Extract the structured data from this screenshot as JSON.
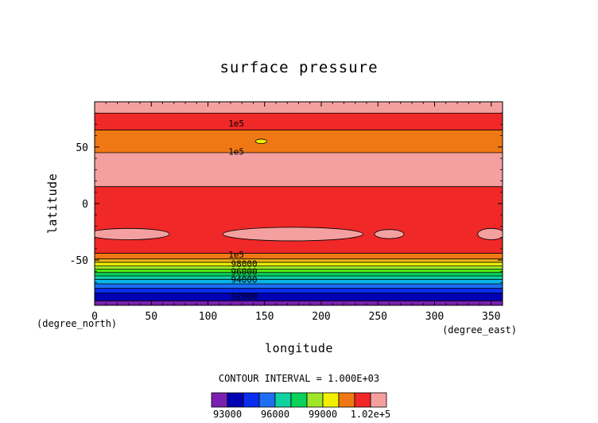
{
  "chart_data": {
    "type": "heatmap",
    "title": "surface pressure",
    "xlabel": "longitude",
    "ylabel": "latitude",
    "x_unit": "(degree_east)",
    "y_unit": "(degree_north)",
    "xlim": [
      0,
      360
    ],
    "ylim": [
      -90,
      90
    ],
    "x_ticks": [
      "0",
      "50",
      "100",
      "150",
      "200",
      "250",
      "300",
      "350"
    ],
    "y_ticks": [
      "-50",
      "0",
      "50"
    ],
    "contour_interval_text": "CONTOUR INTERVAL = 1.000E+03",
    "contour_interval": 1000,
    "grid": false,
    "colors": [
      "#7a1fb0",
      "#0000b4",
      "#0a2cf0",
      "#1e6ef4",
      "#0ab4e6",
      "#10d2a0",
      "#0ad25a",
      "#50e614",
      "#a0e628",
      "#f0f000",
      "#f0b414",
      "#f07814",
      "#f02828",
      "#f03232",
      "#f5a0a0"
    ],
    "colorbar": {
      "bounds": [
        92000,
        93000,
        94000,
        95000,
        96000,
        97000,
        98000,
        99000,
        100000,
        101000,
        102000,
        103000
      ],
      "colors": [
        "#7a1fb0",
        "#0000b4",
        "#0a2cf0",
        "#1e6ef4",
        "#10d2a0",
        "#0ad25a",
        "#a0e628",
        "#f0f000",
        "#f07814",
        "#f02828",
        "#f5a0a0"
      ],
      "tick_labels": [
        "93000",
        "96000",
        "99000",
        "1.02e+5"
      ]
    },
    "bands": [
      {
        "lat_from": -90,
        "lat_to": -86,
        "pressure": 92500,
        "color": "#7a1fb0"
      },
      {
        "lat_from": -86,
        "lat_to": -79,
        "pressure": 93500,
        "color": "#0000b4"
      },
      {
        "lat_from": -79,
        "lat_to": -75,
        "pressure": 94500,
        "color": "#0a2cf0"
      },
      {
        "lat_from": -75,
        "lat_to": -71,
        "pressure": 95000,
        "color": "#1e6ef4"
      },
      {
        "lat_from": -71,
        "lat_to": -67,
        "pressure": 95500,
        "color": "#0ab4e6"
      },
      {
        "lat_from": -67,
        "lat_to": -64,
        "pressure": 96500,
        "color": "#10d2a0"
      },
      {
        "lat_from": -64,
        "lat_to": -61,
        "pressure": 97000,
        "color": "#0ad25a"
      },
      {
        "lat_from": -61,
        "lat_to": -58,
        "pressure": 97500,
        "color": "#50e614"
      },
      {
        "lat_from": -58,
        "lat_to": -55,
        "pressure": 98500,
        "color": "#a0e628"
      },
      {
        "lat_from": -55,
        "lat_to": -52,
        "pressure": 99000,
        "color": "#f0f000"
      },
      {
        "lat_from": -52,
        "lat_to": -49,
        "pressure": 99500,
        "color": "#f0b414"
      },
      {
        "lat_from": -49,
        "lat_to": -44,
        "pressure": 100500,
        "color": "#f07814"
      },
      {
        "lat_from": -44,
        "lat_to": 15,
        "pressure": 101500,
        "color": "#f02828"
      },
      {
        "lat_from": 15,
        "lat_to": 45,
        "pressure": 102500,
        "color": "#f5a0a0"
      },
      {
        "lat_from": 45,
        "lat_to": 65,
        "pressure": 100500,
        "color": "#f07814"
      },
      {
        "lat_from": 65,
        "lat_to": 80,
        "pressure": 101500,
        "color": "#f02828"
      },
      {
        "lat_from": 80,
        "lat_to": 90,
        "pressure": 102500,
        "color": "#f5a0a0"
      }
    ],
    "blobs": [
      {
        "lon": 30,
        "lat": -27,
        "lon_radius": 36,
        "lat_radius": 5,
        "pressure": 102500,
        "color": "#f5a0a0"
      },
      {
        "lon": 175,
        "lat": -27,
        "lon_radius": 62,
        "lat_radius": 6,
        "pressure": 102500,
        "color": "#f5a0a0"
      },
      {
        "lon": 260,
        "lat": -27,
        "lon_radius": 13,
        "lat_radius": 4,
        "pressure": 102500,
        "color": "#f5a0a0"
      },
      {
        "lon": 350,
        "lat": -27,
        "lon_radius": 12,
        "lat_radius": 5,
        "pressure": 102500,
        "color": "#f5a0a0"
      },
      {
        "lon": 147,
        "lat": 55,
        "lon_radius": 5,
        "lat_radius": 2,
        "pressure": 99000,
        "color": "#f0f000"
      }
    ],
    "contour_labels": [
      {
        "text": "1e5",
        "lon": 125,
        "lat": 71
      },
      {
        "text": "1e5",
        "lon": 125,
        "lat": 46
      },
      {
        "text": "1e5",
        "lon": 125,
        "lat": -45
      },
      {
        "text": "98000",
        "lon": 132,
        "lat": -53
      },
      {
        "text": "96000",
        "lon": 132,
        "lat": -60
      },
      {
        "text": "94000",
        "lon": 132,
        "lat": -67
      },
      {
        "text": "92000",
        "lon": 132,
        "lat": -82
      }
    ]
  }
}
